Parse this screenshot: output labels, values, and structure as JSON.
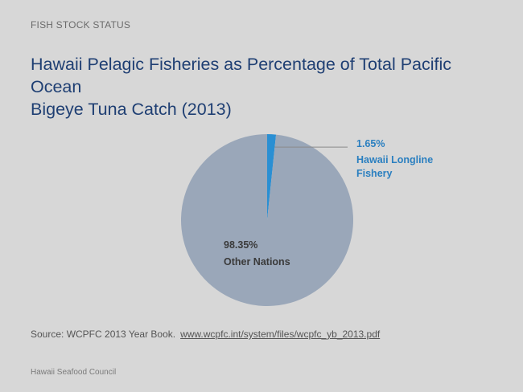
{
  "section_label": "FISH STOCK STATUS",
  "title_line1": "Hawaii Pelagic Fisheries as Percentage of Total Pacific Ocean",
  "title_line2": "Bigeye Tuna Catch (2013)",
  "source": {
    "text": "Source: WCPFC 2013 Year Book.",
    "link": "www.wcpfc.int/system/files/wcpfc_yb_2013.pdf"
  },
  "footer": "Hawaii Seafood Council",
  "colors": {
    "background": "#d7d7d7",
    "title": "#1f3f73",
    "hawaii_slice": "#2a8fd3",
    "other_slice": "#9aa7b9",
    "hawaii_label": "#2a7fc0",
    "other_label": "#3a3a3a"
  },
  "chart_data": {
    "type": "pie",
    "title": "",
    "slices": [
      {
        "name": "Hawaii Longline Fishery",
        "value": 1.65,
        "label_pct": "1.65%",
        "label_name_line1": "Hawaii Longline",
        "label_name_line2": "Fishery"
      },
      {
        "name": "Other Nations",
        "value": 98.35,
        "label_pct": "98.35%",
        "label_name_line1": "Other Nations",
        "label_name_line2": ""
      }
    ]
  }
}
